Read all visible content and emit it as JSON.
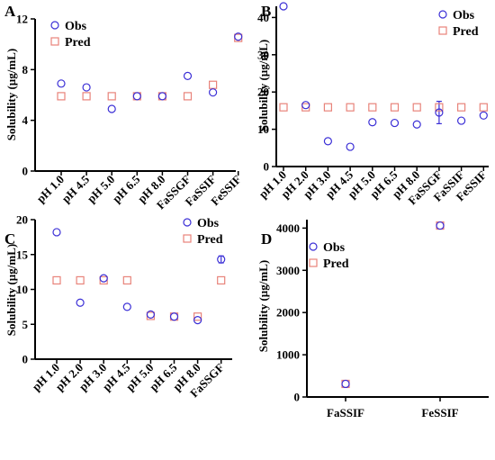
{
  "colors": {
    "obs": "#3b2fd6",
    "pred": "#e8837a",
    "axis": "#000000"
  },
  "legend": {
    "obs": "Obs",
    "pred": "Pred"
  },
  "chart_data": [
    {
      "panel": "A",
      "type": "scatter",
      "ylabel": "Solubility (µg/mL)",
      "ylim": [
        0,
        12
      ],
      "yticks": [
        0,
        4,
        8,
        12
      ],
      "categories": [
        "pH 1.0",
        "pH 4.5",
        "pH 5.0",
        "pH 6.5",
        "pH 8.0",
        "FaSSGF",
        "FaSSIF",
        "FeSSIF"
      ],
      "series": [
        {
          "name": "Obs",
          "values": [
            6.9,
            6.6,
            4.9,
            5.9,
            5.9,
            7.5,
            6.2,
            10.6
          ]
        },
        {
          "name": "Pred",
          "values": [
            5.9,
            5.9,
            5.9,
            5.9,
            5.9,
            5.9,
            6.8,
            10.5
          ]
        }
      ]
    },
    {
      "panel": "B",
      "type": "scatter",
      "ylabel": "Solubility (µg/mL)",
      "ylim": [
        0,
        43
      ],
      "yticks": [
        0,
        10,
        20,
        30,
        40
      ],
      "categories": [
        "pH 1.0",
        "pH 2.0",
        "pH 3.0",
        "pH 4.5",
        "pH 5.0",
        "pH 6.5",
        "pH 8.0",
        "FaSSGF",
        "FaSSIF",
        "FeSSIF"
      ],
      "series": [
        {
          "name": "Obs",
          "values": [
            43.0,
            16.5,
            6.8,
            5.3,
            11.9,
            11.7,
            11.3,
            14.5,
            12.3,
            13.7
          ]
        },
        {
          "name": "Pred",
          "values": [
            15.9,
            15.9,
            15.9,
            15.9,
            15.9,
            15.9,
            15.9,
            15.9,
            15.9,
            15.9
          ]
        }
      ],
      "error_bars": [
        {
          "series": "Obs",
          "category": "FaSSGF",
          "error": 3
        }
      ]
    },
    {
      "panel": "C",
      "type": "scatter",
      "ylabel": "Solubility (µg/mL)",
      "ylim": [
        0,
        20
      ],
      "yticks": [
        0,
        5,
        10,
        15,
        20
      ],
      "categories": [
        "pH 1.0",
        "pH 2.0",
        "pH 3.0",
        "pH 4.5",
        "pH 5.0",
        "pH 6.5",
        "pH 8.0",
        "FaSSGF"
      ],
      "series": [
        {
          "name": "Obs",
          "values": [
            18.2,
            8.1,
            11.6,
            7.5,
            6.4,
            6.1,
            5.6,
            14.3
          ]
        },
        {
          "name": "Pred",
          "values": [
            11.3,
            11.3,
            11.3,
            11.3,
            6.2,
            6.1,
            6.1,
            11.3
          ]
        }
      ],
      "error_bars": [
        {
          "series": "Obs",
          "category": "FaSSGF",
          "error": 0.5
        }
      ]
    },
    {
      "panel": "D",
      "type": "scatter",
      "ylabel": "Solubility (µg/mL)",
      "ylim": [
        0,
        4200
      ],
      "yticks": [
        0,
        1000,
        2000,
        3000,
        4000
      ],
      "categories": [
        "FaSSIF",
        "FeSSIF"
      ],
      "series": [
        {
          "name": "Obs",
          "values": [
            310,
            4060
          ]
        },
        {
          "name": "Pred",
          "values": [
            310,
            4060
          ]
        }
      ]
    }
  ]
}
